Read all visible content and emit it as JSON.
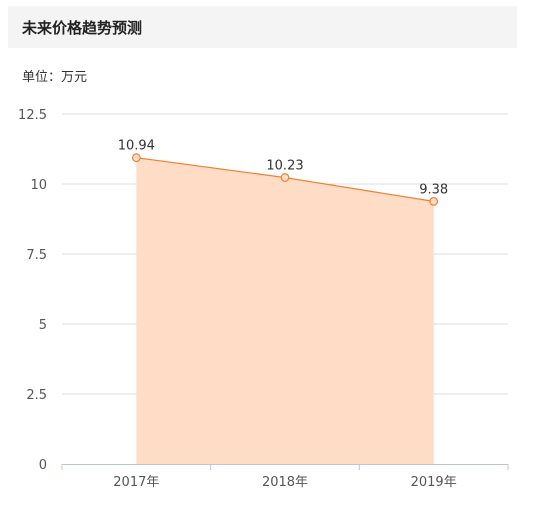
{
  "header": {
    "title": "未来价格趋势预测"
  },
  "chart_data": {
    "type": "area",
    "unit_label": "单位：万元",
    "categories": [
      "2017年",
      "2018年",
      "2019年"
    ],
    "series": [
      {
        "values": [
          10.94,
          10.23,
          9.38
        ]
      }
    ],
    "data_labels": [
      "10.94",
      "10.23",
      "9.38"
    ],
    "yticks": [
      "0",
      "2.5",
      "5",
      "7.5",
      "10",
      "12.5"
    ],
    "ylim": [
      0,
      12.5
    ],
    "grid": true,
    "colors": {
      "line": "#f07d2f",
      "fill": "#ffdcc6",
      "grid": "#dddddd",
      "axis": "#b8c8d8"
    }
  }
}
